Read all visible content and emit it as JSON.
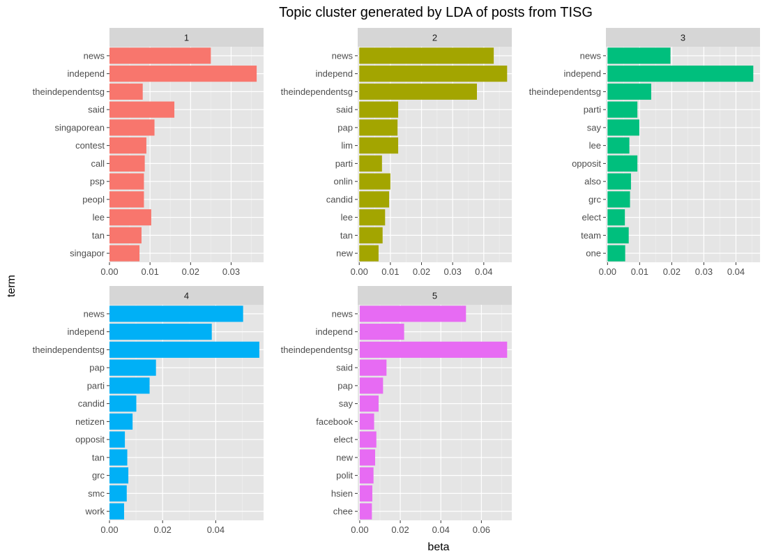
{
  "chart_data": {
    "type": "bar",
    "orientation": "horizontal",
    "title": "Topic cluster generated by LDA of posts from TISG",
    "xlabel": "beta",
    "ylabel": "term",
    "grid": true,
    "legend": "none",
    "panel_background": "#e5e5e5",
    "strip_background": "#d6d6d6",
    "panels": [
      {
        "name": "1",
        "color": "#f8766d",
        "xlim": [
          0,
          0.038
        ],
        "xticks": [
          "0.00",
          "0.01",
          "0.02",
          "0.03"
        ],
        "xtick_values": [
          0,
          0.01,
          0.02,
          0.03
        ],
        "terms": [
          "news",
          "independ",
          "theindependentsg",
          "said",
          "singaporean",
          "contest",
          "call",
          "psp",
          "peopl",
          "lee",
          "tan",
          "singapor"
        ],
        "values": [
          0.025,
          0.0363,
          0.0082,
          0.016,
          0.0111,
          0.0091,
          0.0087,
          0.0085,
          0.0085,
          0.0103,
          0.0079,
          0.0074
        ]
      },
      {
        "name": "2",
        "color": "#a3a500",
        "xlim": [
          -0.0005,
          0.049
        ],
        "xticks": [
          "0.00",
          "0.01",
          "0.02",
          "0.03",
          "0.04"
        ],
        "xtick_values": [
          0,
          0.01,
          0.02,
          0.03,
          0.04
        ],
        "terms": [
          "news",
          "independ",
          "theindependentsg",
          "said",
          "pap",
          "lim",
          "parti",
          "onlin",
          "candid",
          "lee",
          "tan",
          "new"
        ],
        "values": [
          0.0432,
          0.0475,
          0.0378,
          0.0125,
          0.0123,
          0.0125,
          0.0073,
          0.01,
          0.0096,
          0.0083,
          0.0075,
          0.0062
        ]
      },
      {
        "name": "3",
        "color": "#00bf7d",
        "xlim": [
          -0.0005,
          0.0475
        ],
        "xticks": [
          "0.00",
          "0.01",
          "0.02",
          "0.03",
          "0.04"
        ],
        "xtick_values": [
          0,
          0.01,
          0.02,
          0.03,
          0.04
        ],
        "terms": [
          "news",
          "independ",
          "theindependentsg",
          "parti",
          "say",
          "lee",
          "opposit",
          "also",
          "grc",
          "elect",
          "team",
          "one"
        ],
        "values": [
          0.0196,
          0.0454,
          0.0136,
          0.0093,
          0.0099,
          0.0068,
          0.0093,
          0.0073,
          0.007,
          0.0054,
          0.0066,
          0.0055
        ]
      },
      {
        "name": "4",
        "color": "#00b0f6",
        "xlim": [
          0,
          0.058
        ],
        "xticks": [
          "0.00",
          "0.02",
          "0.04"
        ],
        "xtick_values": [
          0,
          0.02,
          0.04
        ],
        "terms": [
          "news",
          "independ",
          "theindependentsg",
          "pap",
          "parti",
          "candid",
          "netizen",
          "opposit",
          "tan",
          "grc",
          "smc",
          "work"
        ],
        "values": [
          0.0503,
          0.0385,
          0.0564,
          0.0175,
          0.0151,
          0.0101,
          0.0087,
          0.0058,
          0.0067,
          0.0071,
          0.0065,
          0.0055
        ]
      },
      {
        "name": "5",
        "color": "#e76bf3",
        "xlim": [
          -0.001,
          0.075
        ],
        "xticks": [
          "0.00",
          "0.02",
          "0.04",
          "0.06"
        ],
        "xtick_values": [
          0,
          0.02,
          0.04,
          0.06
        ],
        "terms": [
          "news",
          "independ",
          "theindependentsg",
          "said",
          "pap",
          "say",
          "facebook",
          "elect",
          "new",
          "polit",
          "hsien",
          "chee"
        ],
        "values": [
          0.0524,
          0.0219,
          0.0727,
          0.0132,
          0.0115,
          0.0093,
          0.0071,
          0.0082,
          0.0076,
          0.0068,
          0.0062,
          0.006
        ]
      }
    ]
  }
}
